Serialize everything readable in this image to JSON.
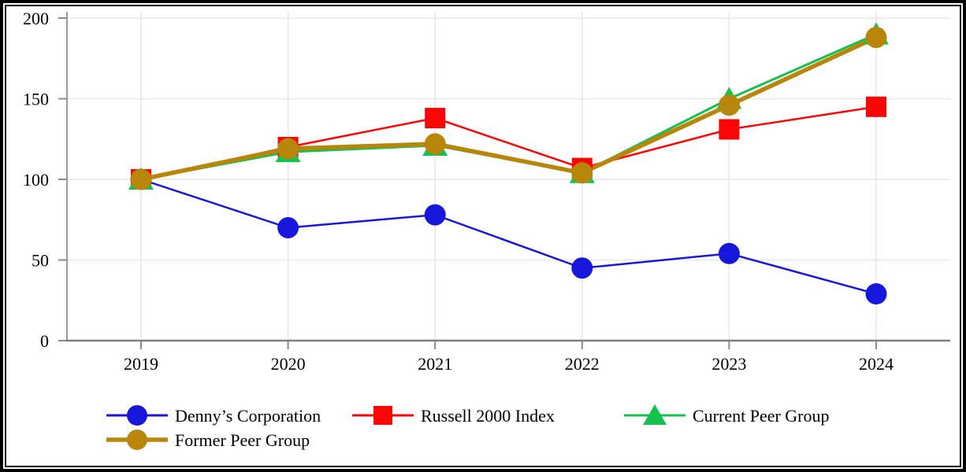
{
  "chart_data": {
    "type": "line",
    "title": "",
    "x_labels": [
      "2019",
      "2020",
      "2021",
      "2022",
      "2023",
      "2024"
    ],
    "y_ticks": [
      0,
      50,
      100,
      150,
      200
    ],
    "ylim": [
      0,
      200
    ],
    "grid": true,
    "legend_position": "bottom",
    "series": [
      {
        "name": "Denny’s Corporation",
        "marker": "circle",
        "color": "#1717dc",
        "values": [
          100,
          70,
          78,
          45,
          54,
          29
        ]
      },
      {
        "name": "Russell 2000 Index",
        "marker": "square",
        "color": "#fb0505",
        "values": [
          100,
          120,
          138,
          107,
          131,
          145
        ]
      },
      {
        "name": "Current Peer Group",
        "marker": "triangle",
        "color": "#15c24e",
        "values": [
          100,
          117,
          121,
          104,
          150,
          190
        ]
      },
      {
        "name": "Former Peer Group",
        "marker": "circle",
        "color": "#b8860b",
        "values": [
          100,
          119,
          122,
          104,
          146,
          188
        ]
      }
    ],
    "colors": {
      "gridline": "#e7e7e7",
      "y_axis": "#9a9a9a",
      "x_axis": "#7f7f7f",
      "tick": "#8a8a8a",
      "text": "#000000",
      "frame": "#000000",
      "background": "#ffffff"
    }
  }
}
